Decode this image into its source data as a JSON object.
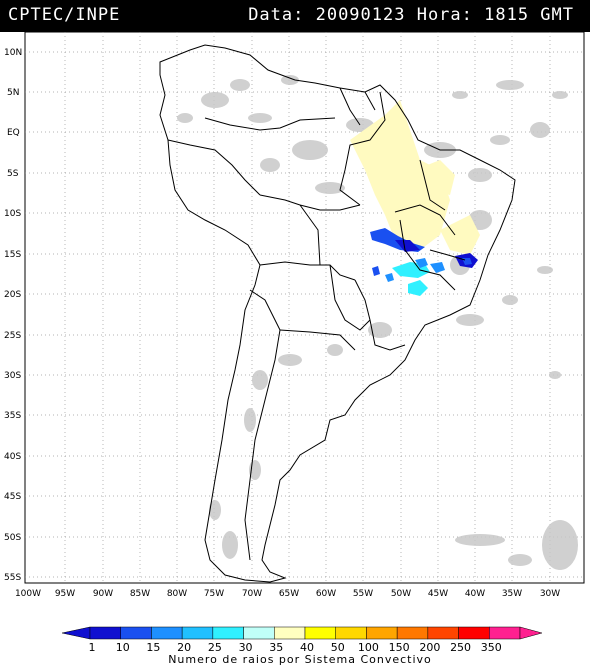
{
  "header": {
    "left": "CPTEC/INPE",
    "right": "Data: 20090123 Hora: 1815 GMT"
  },
  "axes": {
    "lat_labels": [
      "10N",
      "5N",
      "EQ",
      "5S",
      "10S",
      "15S",
      "20S",
      "25S",
      "30S",
      "35S",
      "40S",
      "45S",
      "50S",
      "55S"
    ],
    "lon_labels": [
      "100W",
      "95W",
      "90W",
      "85W",
      "80W",
      "75W",
      "70W",
      "65W",
      "60W",
      "55W",
      "50W",
      "45W",
      "40W",
      "35W",
      "30W"
    ]
  },
  "legend": {
    "title": "Numero de raios por Sistema Convectivo",
    "ticks": [
      "1",
      "10",
      "15",
      "20",
      "25",
      "30",
      "35",
      "40",
      "50",
      "100",
      "150",
      "200",
      "250",
      "350"
    ],
    "colors": [
      "#1010d0",
      "#1a50f0",
      "#1e90ff",
      "#20c0ff",
      "#30f0ff",
      "#c0fff8",
      "#ffffc0",
      "#ffff00",
      "#ffd800",
      "#ffa500",
      "#ff7800",
      "#ff4500",
      "#ff0000",
      "#ff2090"
    ]
  },
  "colors": {
    "land_outline": "#000000",
    "cloud_gray": "#c8c8c8",
    "light_yellow": "#fffac0",
    "grid": "#9a9a9a"
  }
}
